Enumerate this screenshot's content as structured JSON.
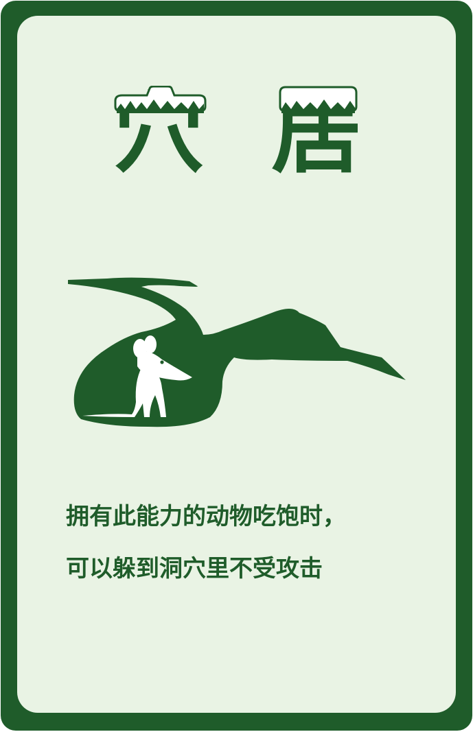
{
  "card": {
    "title_chars": [
      "穴",
      "居"
    ],
    "description_lines": [
      "拥有此能力的动物吃饱时，",
      "可以躲到洞穴里不受攻击"
    ],
    "illustration": "mouse-in-burrow",
    "colors": {
      "frame": "#1f5c2a",
      "background": "#e9f3e4",
      "figure": "#ffffff"
    }
  }
}
